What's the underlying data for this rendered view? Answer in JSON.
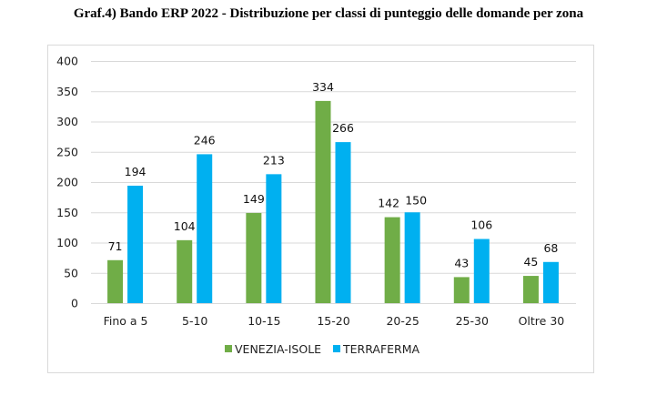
{
  "chart_data": {
    "type": "bar",
    "title": "Graf.4) Bando ERP 2022 - Distribuzione per classi di punteggio delle domande per zona",
    "categories": [
      "Fino a 5",
      "5-10",
      "10-15",
      "15-20",
      "20-25",
      "25-30",
      "Oltre 30"
    ],
    "series": [
      {
        "name": "VENEZIA-ISOLE",
        "color": "#70ad47",
        "values": [
          71,
          104,
          149,
          334,
          142,
          43,
          45
        ]
      },
      {
        "name": "TERRAFERMA",
        "color": "#00b0f0",
        "values": [
          194,
          246,
          213,
          266,
          150,
          106,
          68
        ]
      }
    ],
    "yticks": [
      0,
      50,
      100,
      150,
      200,
      250,
      300,
      350,
      400
    ],
    "ylim": [
      0,
      400
    ],
    "xlabel": "",
    "ylabel": "",
    "grid": true,
    "legend": "bottom"
  }
}
